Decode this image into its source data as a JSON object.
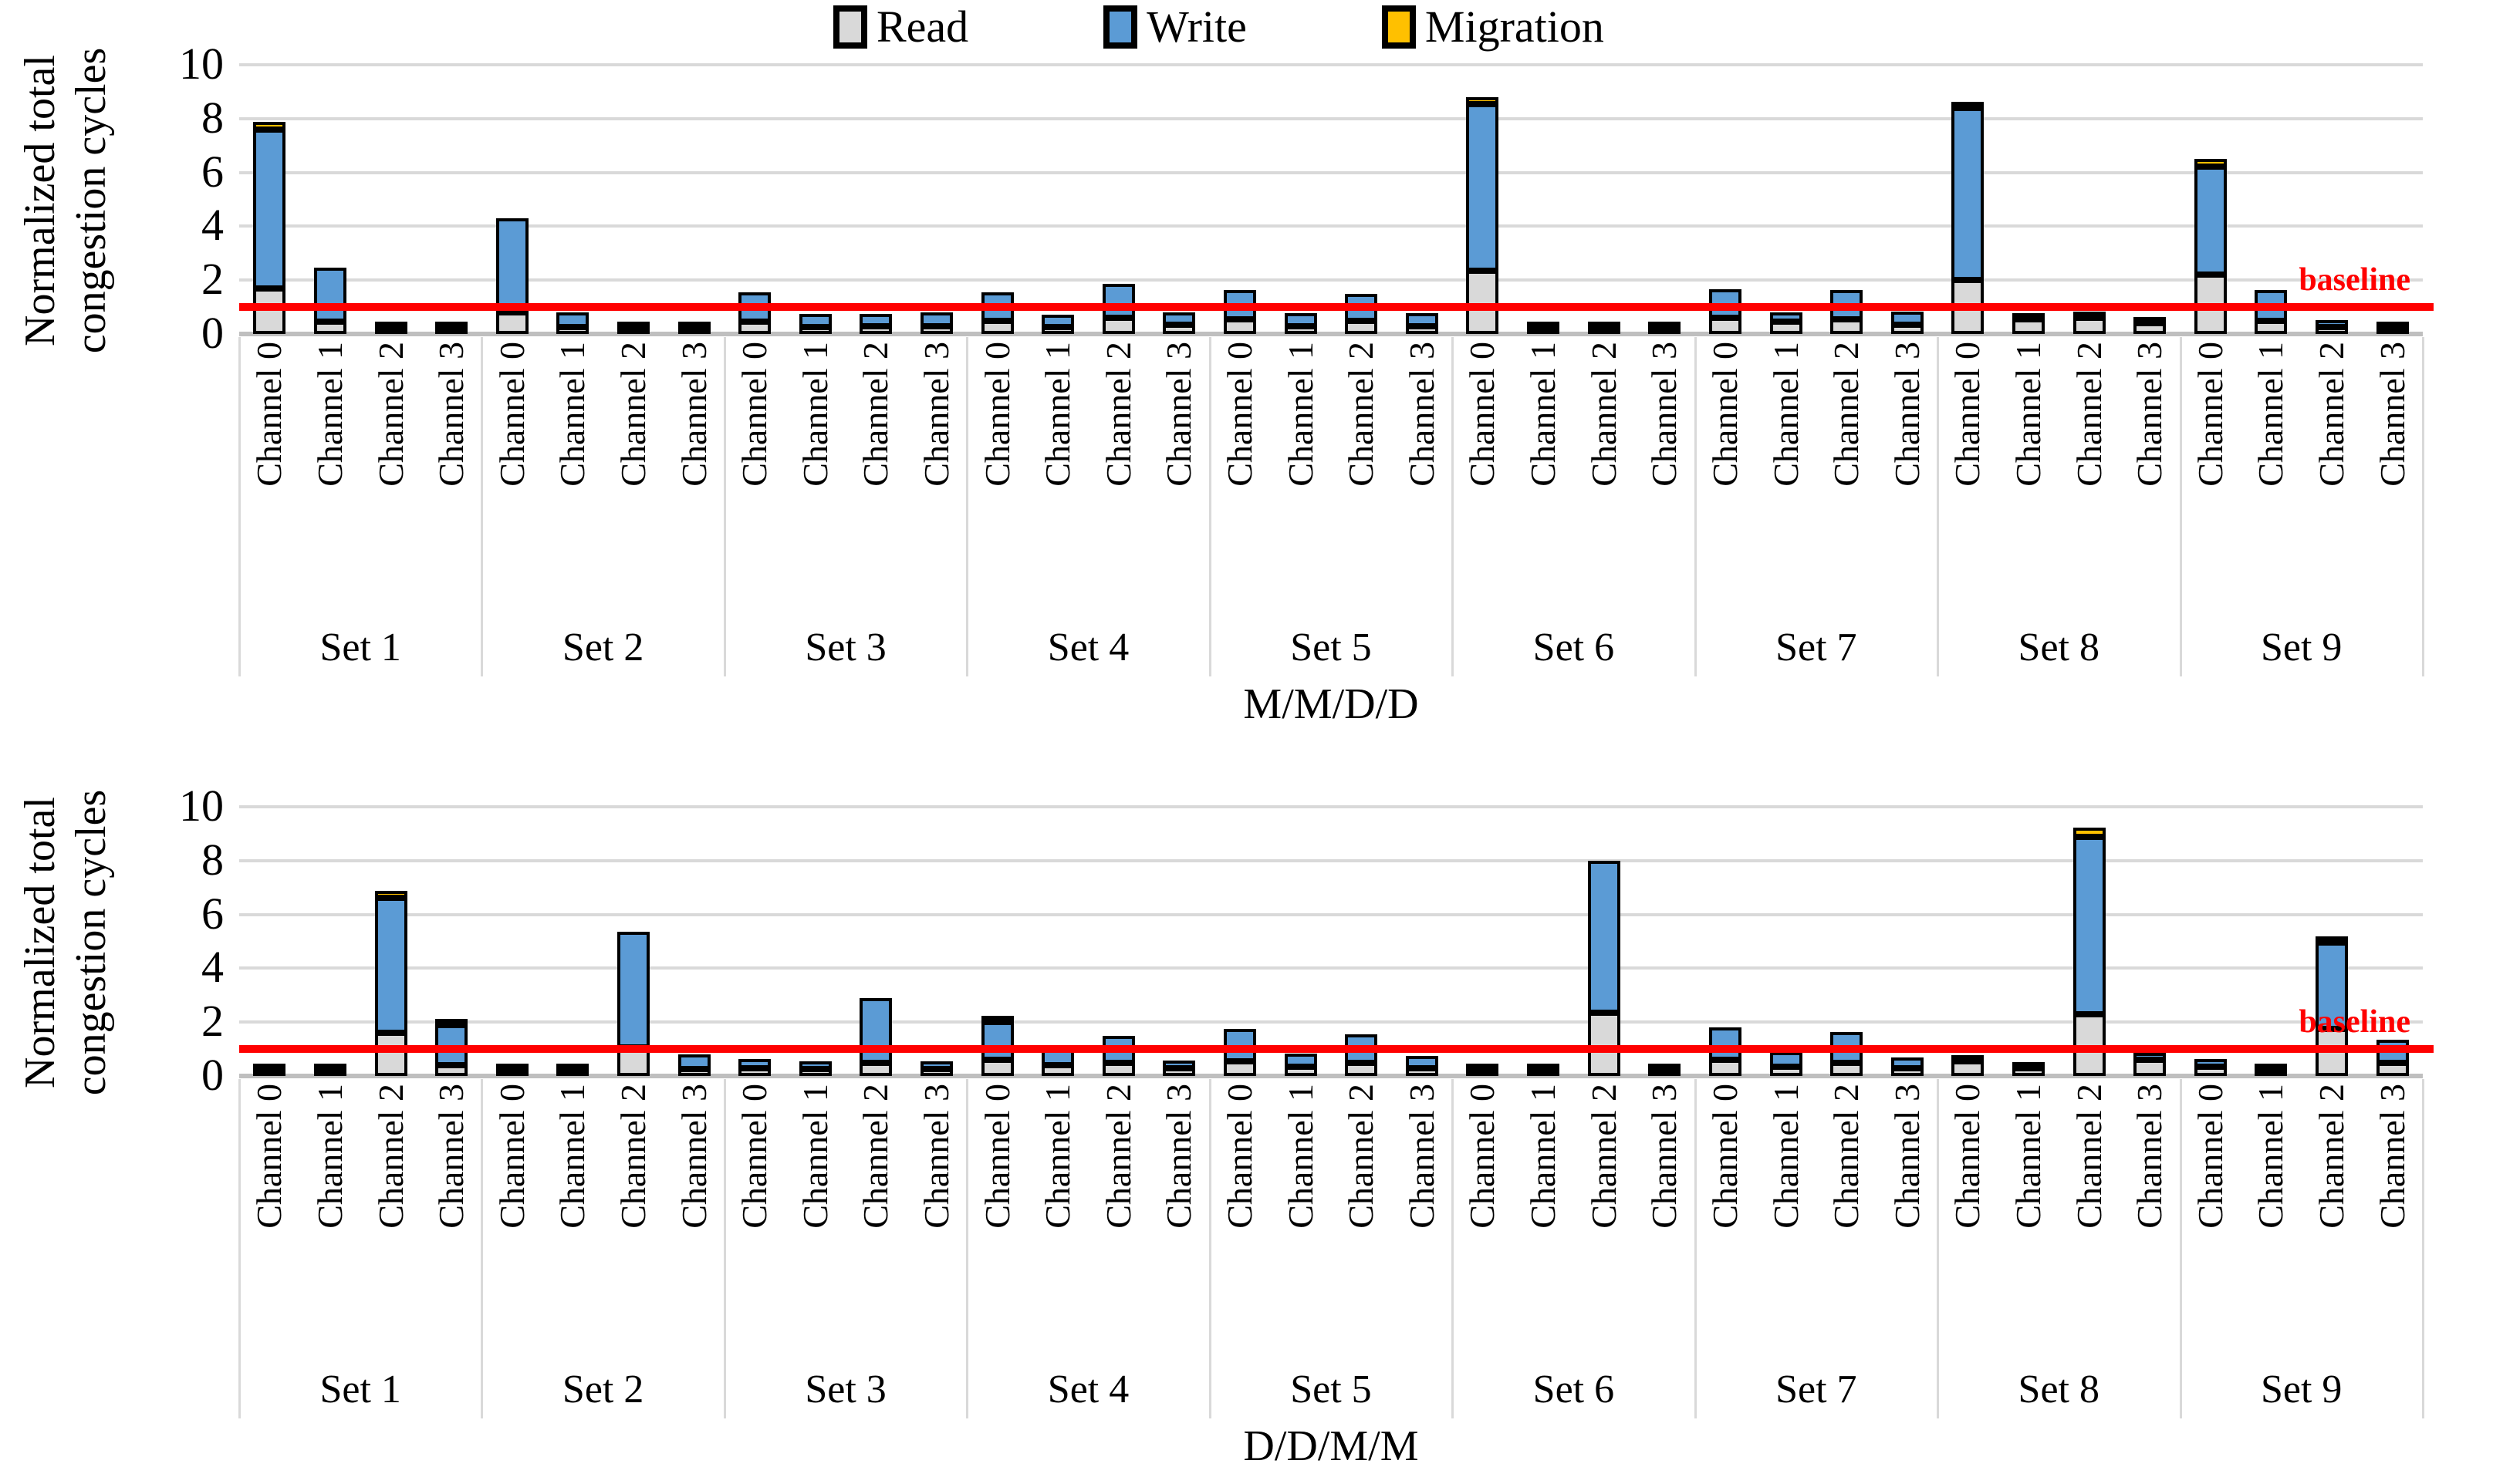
{
  "legend": {
    "items": [
      {
        "label": "Read",
        "color": "#D9D9D9"
      },
      {
        "label": "Write",
        "color": "#5B9BD5"
      },
      {
        "label": "Migration",
        "color": "#FFC000"
      }
    ]
  },
  "y_axis": {
    "title_line1": "Normalized total",
    "title_line2": "congestion cycles",
    "ticks": [
      0,
      2,
      4,
      6,
      8,
      10
    ]
  },
  "baseline": {
    "value": 1,
    "label": "baseline",
    "color": "#FF0000"
  },
  "chart_data": [
    {
      "type": "bar",
      "stacked": true,
      "title": "M/M/D/D",
      "ylabel": "Normalized total congestion cycles",
      "ylim": [
        0,
        10
      ],
      "yticks": [
        0,
        2,
        4,
        6,
        8,
        10
      ],
      "grid": true,
      "legend_position": "top-center",
      "baseline": 1,
      "groups": [
        "Set 1",
        "Set 2",
        "Set 3",
        "Set 4",
        "Set 5",
        "Set 6",
        "Set 7",
        "Set 8",
        "Set 9"
      ],
      "categories": [
        "Channel 0",
        "Channel 1",
        "Channel 2",
        "Channel 3"
      ],
      "series": [
        {
          "name": "Read",
          "color": "#D9D9D9",
          "values": [
            [
              1.7,
              0.45,
              0.06,
              0.04
            ],
            [
              0.8,
              0.25,
              0.1,
              0.1
            ],
            [
              0.45,
              0.25,
              0.3,
              0.28
            ],
            [
              0.5,
              0.25,
              0.6,
              0.35
            ],
            [
              0.55,
              0.3,
              0.5,
              0.3
            ],
            [
              2.35,
              0.2,
              0.12,
              0.1
            ],
            [
              0.6,
              0.45,
              0.55,
              0.35
            ],
            [
              2.0,
              0.55,
              0.6,
              0.4
            ],
            [
              2.2,
              0.5,
              0.25,
              0.1
            ]
          ]
        },
        {
          "name": "Write",
          "color": "#5B9BD5",
          "values": [
            [
              5.9,
              2.0,
              0.04,
              0.03
            ],
            [
              3.5,
              0.55,
              0.2,
              0.2
            ],
            [
              1.1,
              0.5,
              0.45,
              0.52
            ],
            [
              1.05,
              0.45,
              1.25,
              0.45
            ],
            [
              1.1,
              0.5,
              1.0,
              0.5
            ],
            [
              6.2,
              0.2,
              0.18,
              0.1
            ],
            [
              1.05,
              0.35,
              1.1,
              0.5
            ],
            [
              6.4,
              0.2,
              0.1,
              0.1
            ],
            [
              4.0,
              1.15,
              0.25,
              0.05
            ]
          ]
        },
        {
          "name": "Migration",
          "color": "#FFC000",
          "values": [
            [
              0.3,
              0,
              0,
              0
            ],
            [
              0,
              0,
              0,
              0
            ],
            [
              0,
              0,
              0,
              0
            ],
            [
              0,
              0,
              0,
              0
            ],
            [
              0,
              0,
              0,
              0
            ],
            [
              0.25,
              0,
              0,
              0
            ],
            [
              0,
              0,
              0,
              0
            ],
            [
              0.2,
              0,
              0,
              0
            ],
            [
              0.3,
              0,
              0,
              0
            ]
          ]
        }
      ]
    },
    {
      "type": "bar",
      "stacked": true,
      "title": "D/D/M/M",
      "ylabel": "Normalized total congestion cycles",
      "ylim": [
        0,
        10
      ],
      "yticks": [
        0,
        2,
        4,
        6,
        8,
        10
      ],
      "grid": true,
      "legend_position": "none",
      "baseline": 1,
      "groups": [
        "Set 1",
        "Set 2",
        "Set 3",
        "Set 4",
        "Set 5",
        "Set 6",
        "Set 7",
        "Set 8",
        "Set 9"
      ],
      "categories": [
        "Channel 0",
        "Channel 1",
        "Channel 2",
        "Channel 3"
      ],
      "series": [
        {
          "name": "Read",
          "color": "#D9D9D9",
          "values": [
            [
              0.05,
              0.05,
              1.6,
              0.4
            ],
            [
              0.07,
              0.07,
              1.05,
              0.25
            ],
            [
              0.3,
              0.25,
              0.5,
              0.25
            ],
            [
              0.6,
              0.4,
              0.5,
              0.3
            ],
            [
              0.55,
              0.35,
              0.5,
              0.3
            ],
            [
              0.15,
              0.1,
              2.35,
              0.2
            ],
            [
              0.6,
              0.35,
              0.5,
              0.3
            ],
            [
              0.55,
              0.3,
              2.3,
              0.6
            ],
            [
              0.35,
              0.08,
              1.75,
              0.5
            ]
          ]
        },
        {
          "name": "Write",
          "color": "#5B9BD5",
          "values": [
            [
              0.03,
              0.03,
              5.0,
              1.5
            ],
            [
              0.05,
              0.05,
              4.3,
              0.55
            ],
            [
              0.35,
              0.3,
              2.4,
              0.3
            ],
            [
              1.4,
              0.75,
              1.0,
              0.3
            ],
            [
              1.2,
              0.5,
              1.05,
              0.45
            ],
            [
              0.05,
              0.05,
              5.65,
              0.1
            ],
            [
              1.2,
              0.55,
              1.15,
              0.4
            ],
            [
              0.15,
              0.05,
              6.6,
              0.25
            ],
            [
              0.3,
              0.04,
              3.2,
              0.85
            ]
          ]
        },
        {
          "name": "Migration",
          "color": "#FFC000",
          "values": [
            [
              0,
              0,
              0.25,
              0.1
            ],
            [
              0,
              0,
              0,
              0
            ],
            [
              0,
              0,
              0,
              0
            ],
            [
              0.08,
              0,
              0,
              0
            ],
            [
              0,
              0,
              0,
              0
            ],
            [
              0,
              0,
              0,
              0
            ],
            [
              0,
              0,
              0,
              0
            ],
            [
              0,
              0,
              0.35,
              0
            ],
            [
              0,
              0,
              0.2,
              0
            ]
          ]
        }
      ]
    }
  ]
}
